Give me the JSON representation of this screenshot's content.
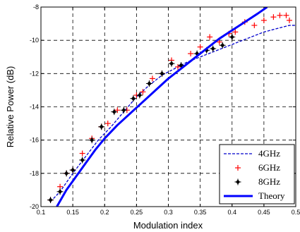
{
  "chart_data": {
    "type": "line",
    "title": "",
    "xlabel": "Modulation index",
    "ylabel": "Relative Power (dB)",
    "xlim": [
      0.1,
      0.5
    ],
    "ylim": [
      -20,
      -8
    ],
    "xticks": [
      "0.1",
      "0.15",
      "0.2",
      "0.25",
      "0.3",
      "0.35",
      "0.4",
      "0.45",
      "0.5"
    ],
    "yticks": [
      "-8",
      "-10",
      "-12",
      "-14",
      "-16",
      "-18",
      "-20"
    ],
    "grid": true,
    "legend_position": "bottom-right",
    "series": [
      {
        "name": "4GHz",
        "style": "dashed-line",
        "color": "#0000cc",
        "x": [
          0.115,
          0.13,
          0.15,
          0.17,
          0.19,
          0.21,
          0.23,
          0.25,
          0.27,
          0.29,
          0.31,
          0.33,
          0.35,
          0.37,
          0.39,
          0.41,
          0.43,
          0.45,
          0.47,
          0.49,
          0.5
        ],
        "y": [
          -19.7,
          -19.1,
          -18.0,
          -17.0,
          -16.0,
          -15.2,
          -14.3,
          -13.4,
          -12.7,
          -12.1,
          -11.7,
          -11.3,
          -11.0,
          -10.7,
          -10.4,
          -10.1,
          -9.8,
          -9.5,
          -9.3,
          -9.1,
          -9.1
        ]
      },
      {
        "name": "6GHz",
        "style": "plus-marker",
        "color": "#ff0000",
        "x": [
          0.115,
          0.13,
          0.14,
          0.15,
          0.165,
          0.18,
          0.195,
          0.205,
          0.22,
          0.235,
          0.25,
          0.26,
          0.275,
          0.29,
          0.305,
          0.315,
          0.335,
          0.35,
          0.365,
          0.38,
          0.395,
          0.405,
          0.42,
          0.435,
          0.45,
          0.465,
          0.475,
          0.485,
          0.49
        ],
        "y": [
          -19.6,
          -18.8,
          -18.0,
          -17.8,
          -16.8,
          -15.9,
          -15.2,
          -15.0,
          -14.2,
          -14.2,
          -13.3,
          -13.1,
          -12.3,
          -12.0,
          -11.2,
          -11.6,
          -10.8,
          -10.4,
          -9.8,
          -10.1,
          -9.6,
          -9.5,
          -8.9,
          -9.1,
          -8.8,
          -8.6,
          -8.5,
          -8.5,
          -8.8
        ]
      },
      {
        "name": "8GHz",
        "style": "diamond-marker",
        "color": "#000000",
        "x": [
          0.115,
          0.13,
          0.14,
          0.15,
          0.165,
          0.18,
          0.195,
          0.215,
          0.23,
          0.245,
          0.255,
          0.27,
          0.29,
          0.305,
          0.32,
          0.345,
          0.36,
          0.37,
          0.385,
          0.4
        ],
        "y": [
          -19.6,
          -19.1,
          -18.0,
          -17.8,
          -17.2,
          -16.0,
          -15.2,
          -14.3,
          -14.2,
          -13.5,
          -13.3,
          -12.6,
          -12.0,
          -11.4,
          -11.5,
          -10.8,
          -10.6,
          -10.5,
          -10.3,
          -9.8
        ]
      },
      {
        "name": "Theory",
        "style": "solid-thick-line",
        "color": "#0000ff",
        "x": [
          0.125,
          0.14,
          0.155,
          0.17,
          0.185,
          0.2,
          0.22,
          0.24,
          0.26,
          0.28,
          0.3,
          0.32,
          0.34,
          0.36,
          0.38,
          0.4,
          0.42,
          0.44,
          0.455
        ],
        "y": [
          -20.0,
          -19.0,
          -18.2,
          -17.4,
          -16.6,
          -15.9,
          -15.1,
          -14.4,
          -13.7,
          -13.0,
          -12.3,
          -11.7,
          -11.1,
          -10.5,
          -9.9,
          -9.4,
          -8.9,
          -8.4,
          -8.0
        ]
      }
    ]
  }
}
